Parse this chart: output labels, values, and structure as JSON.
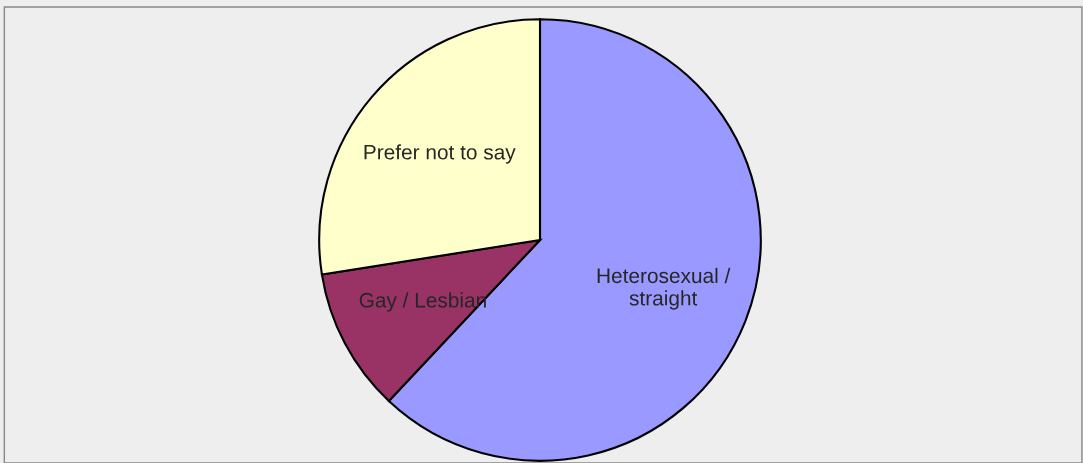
{
  "chart_data": {
    "type": "pie",
    "categories": [
      "Heterosexual /\nstraight",
      "Gay / Lesbian",
      "Prefer not to say"
    ],
    "values": [
      62,
      10.5,
      27.5
    ],
    "colors": [
      "#9999ff",
      "#993366",
      "#ffffcc"
    ],
    "legend": false
  }
}
